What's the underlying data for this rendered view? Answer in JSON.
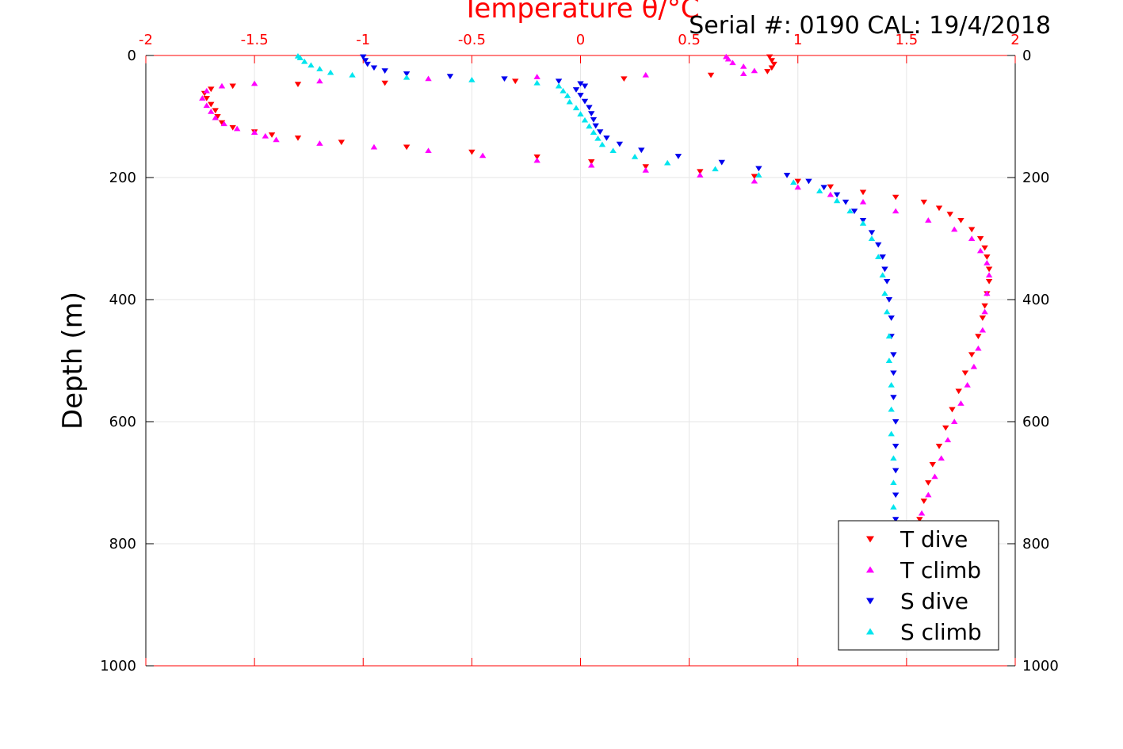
{
  "chart_data": {
    "type": "scatter",
    "title": "",
    "annotation": "Serial #: 0190  CAL: 19/4/2018",
    "xlabel": "Temperature θ/°C",
    "ylabel": "Depth (m)",
    "xlim": [
      -2,
      2
    ],
    "ylim": [
      0,
      1000
    ],
    "y_reversed": true,
    "x_axis_position": "top",
    "y_axis_mirrored_right": true,
    "grid": true,
    "x_ticks": [
      "-2",
      "-1.5",
      "-1",
      "-0.5",
      "0",
      "0.5",
      "1",
      "1.5",
      "2"
    ],
    "y_ticks": [
      "0",
      "200",
      "400",
      "600",
      "800",
      "1000"
    ],
    "legend_position": "bottom-right",
    "colors": {
      "axis_x": "#ff0000",
      "axis_y": "#000000",
      "grid": "#e6e6e6",
      "t_dive": "#ff0000",
      "t_climb": "#ff00ff",
      "s_dive": "#0000ee",
      "s_climb": "#00e5ee"
    },
    "series": [
      {
        "name": "T dive",
        "marker": "triangle-down",
        "color": "#ff0000",
        "points": [
          [
            0.87,
            2
          ],
          [
            0.88,
            8
          ],
          [
            0.89,
            14
          ],
          [
            0.88,
            20
          ],
          [
            0.86,
            26
          ],
          [
            0.6,
            32
          ],
          [
            0.2,
            38
          ],
          [
            -0.3,
            42
          ],
          [
            -0.9,
            45
          ],
          [
            -1.3,
            47
          ],
          [
            -1.6,
            50
          ],
          [
            -1.7,
            55
          ],
          [
            -1.73,
            62
          ],
          [
            -1.72,
            70
          ],
          [
            -1.7,
            80
          ],
          [
            -1.68,
            90
          ],
          [
            -1.67,
            100
          ],
          [
            -1.65,
            110
          ],
          [
            -1.6,
            118
          ],
          [
            -1.5,
            125
          ],
          [
            -1.42,
            130
          ],
          [
            -1.3,
            135
          ],
          [
            -1.1,
            142
          ],
          [
            -0.8,
            150
          ],
          [
            -0.5,
            158
          ],
          [
            -0.2,
            166
          ],
          [
            0.05,
            174
          ],
          [
            0.3,
            182
          ],
          [
            0.55,
            190
          ],
          [
            0.8,
            198
          ],
          [
            1.0,
            206
          ],
          [
            1.15,
            215
          ],
          [
            1.3,
            224
          ],
          [
            1.45,
            232
          ],
          [
            1.58,
            240
          ],
          [
            1.65,
            250
          ],
          [
            1.7,
            260
          ],
          [
            1.75,
            270
          ],
          [
            1.8,
            285
          ],
          [
            1.84,
            300
          ],
          [
            1.86,
            315
          ],
          [
            1.87,
            330
          ],
          [
            1.88,
            350
          ],
          [
            1.88,
            370
          ],
          [
            1.87,
            390
          ],
          [
            1.86,
            410
          ],
          [
            1.85,
            430
          ],
          [
            1.83,
            460
          ],
          [
            1.8,
            490
          ],
          [
            1.77,
            520
          ],
          [
            1.74,
            550
          ],
          [
            1.71,
            580
          ],
          [
            1.68,
            610
          ],
          [
            1.65,
            640
          ],
          [
            1.62,
            670
          ],
          [
            1.6,
            700
          ],
          [
            1.58,
            730
          ],
          [
            1.56,
            760
          ],
          [
            1.54,
            780
          ]
        ]
      },
      {
        "name": "T climb",
        "marker": "triangle-up",
        "color": "#ff00ff",
        "points": [
          [
            1.54,
            780
          ],
          [
            1.57,
            750
          ],
          [
            1.6,
            720
          ],
          [
            1.63,
            690
          ],
          [
            1.66,
            660
          ],
          [
            1.69,
            630
          ],
          [
            1.72,
            600
          ],
          [
            1.75,
            570
          ],
          [
            1.78,
            540
          ],
          [
            1.81,
            510
          ],
          [
            1.83,
            480
          ],
          [
            1.85,
            450
          ],
          [
            1.86,
            420
          ],
          [
            1.87,
            390
          ],
          [
            1.88,
            360
          ],
          [
            1.87,
            340
          ],
          [
            1.84,
            320
          ],
          [
            1.8,
            300
          ],
          [
            1.72,
            285
          ],
          [
            1.6,
            270
          ],
          [
            1.45,
            255
          ],
          [
            1.3,
            240
          ],
          [
            1.15,
            228
          ],
          [
            1.0,
            216
          ],
          [
            0.8,
            206
          ],
          [
            0.55,
            196
          ],
          [
            0.3,
            188
          ],
          [
            0.05,
            180
          ],
          [
            -0.2,
            172
          ],
          [
            -0.45,
            164
          ],
          [
            -0.7,
            156
          ],
          [
            -0.95,
            150
          ],
          [
            -1.2,
            144
          ],
          [
            -1.4,
            138
          ],
          [
            -1.45,
            132
          ],
          [
            -1.5,
            126
          ],
          [
            -1.58,
            120
          ],
          [
            -1.64,
            112
          ],
          [
            -1.68,
            102
          ],
          [
            -1.7,
            92
          ],
          [
            -1.72,
            82
          ],
          [
            -1.74,
            70
          ],
          [
            -1.72,
            58
          ],
          [
            -1.65,
            50
          ],
          [
            -1.5,
            46
          ],
          [
            -1.2,
            42
          ],
          [
            -0.7,
            38
          ],
          [
            -0.2,
            35
          ],
          [
            0.3,
            32
          ],
          [
            0.75,
            30
          ],
          [
            0.8,
            25
          ],
          [
            0.75,
            18
          ],
          [
            0.7,
            12
          ],
          [
            0.68,
            6
          ],
          [
            0.67,
            2
          ]
        ]
      },
      {
        "name": "S dive",
        "marker": "triangle-down",
        "color": "#0000ee",
        "points": [
          [
            -1.0,
            2
          ],
          [
            -0.99,
            8
          ],
          [
            -0.98,
            14
          ],
          [
            -0.95,
            20
          ],
          [
            -0.9,
            25
          ],
          [
            -0.8,
            30
          ],
          [
            -0.6,
            34
          ],
          [
            -0.35,
            38
          ],
          [
            -0.1,
            42
          ],
          [
            0.0,
            46
          ],
          [
            0.02,
            50
          ],
          [
            -0.02,
            56
          ],
          [
            0.0,
            65
          ],
          [
            0.02,
            75
          ],
          [
            0.04,
            85
          ],
          [
            0.05,
            95
          ],
          [
            0.06,
            105
          ],
          [
            0.07,
            115
          ],
          [
            0.09,
            125
          ],
          [
            0.12,
            135
          ],
          [
            0.18,
            145
          ],
          [
            0.28,
            155
          ],
          [
            0.45,
            165
          ],
          [
            0.65,
            175
          ],
          [
            0.82,
            185
          ],
          [
            0.95,
            196
          ],
          [
            1.05,
            206
          ],
          [
            1.12,
            216
          ],
          [
            1.18,
            228
          ],
          [
            1.22,
            240
          ],
          [
            1.26,
            255
          ],
          [
            1.3,
            270
          ],
          [
            1.34,
            290
          ],
          [
            1.37,
            310
          ],
          [
            1.39,
            330
          ],
          [
            1.4,
            350
          ],
          [
            1.41,
            370
          ],
          [
            1.42,
            400
          ],
          [
            1.43,
            430
          ],
          [
            1.43,
            460
          ],
          [
            1.44,
            490
          ],
          [
            1.44,
            520
          ],
          [
            1.44,
            560
          ],
          [
            1.45,
            600
          ],
          [
            1.45,
            640
          ],
          [
            1.45,
            680
          ],
          [
            1.45,
            720
          ],
          [
            1.45,
            760
          ],
          [
            1.45,
            780
          ]
        ]
      },
      {
        "name": "S climb",
        "marker": "triangle-up",
        "color": "#00e5ee",
        "points": [
          [
            1.44,
            780
          ],
          [
            1.44,
            740
          ],
          [
            1.44,
            700
          ],
          [
            1.44,
            660
          ],
          [
            1.43,
            620
          ],
          [
            1.43,
            580
          ],
          [
            1.43,
            540
          ],
          [
            1.42,
            500
          ],
          [
            1.42,
            460
          ],
          [
            1.41,
            420
          ],
          [
            1.4,
            390
          ],
          [
            1.39,
            360
          ],
          [
            1.37,
            330
          ],
          [
            1.34,
            300
          ],
          [
            1.3,
            275
          ],
          [
            1.24,
            255
          ],
          [
            1.18,
            238
          ],
          [
            1.1,
            222
          ],
          [
            0.98,
            208
          ],
          [
            0.82,
            196
          ],
          [
            0.62,
            186
          ],
          [
            0.4,
            176
          ],
          [
            0.25,
            166
          ],
          [
            0.15,
            156
          ],
          [
            0.1,
            146
          ],
          [
            0.08,
            136
          ],
          [
            0.06,
            126
          ],
          [
            0.04,
            116
          ],
          [
            0.02,
            106
          ],
          [
            0.0,
            96
          ],
          [
            -0.02,
            86
          ],
          [
            -0.05,
            76
          ],
          [
            -0.06,
            66
          ],
          [
            -0.08,
            58
          ],
          [
            -0.1,
            50
          ],
          [
            -0.2,
            45
          ],
          [
            -0.5,
            40
          ],
          [
            -0.8,
            36
          ],
          [
            -1.05,
            32
          ],
          [
            -1.15,
            28
          ],
          [
            -1.2,
            22
          ],
          [
            -1.24,
            16
          ],
          [
            -1.27,
            10
          ],
          [
            -1.29,
            4
          ],
          [
            -1.3,
            1
          ]
        ]
      }
    ]
  }
}
